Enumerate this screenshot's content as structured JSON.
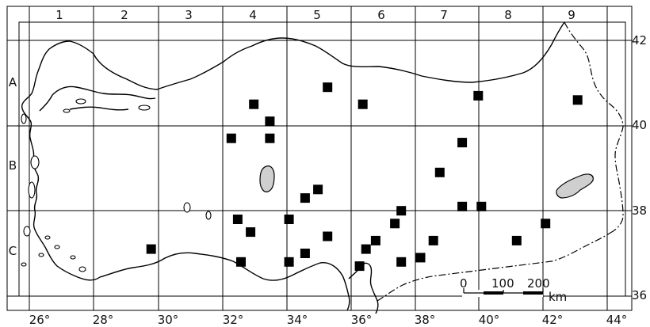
{
  "map": {
    "grid_columns": [
      "1",
      "2",
      "3",
      "4",
      "5",
      "6",
      "7",
      "8",
      "9"
    ],
    "grid_rows": [
      "A",
      "B",
      "C"
    ],
    "longitude_labels": [
      "26°",
      "28°",
      "30°",
      "32°",
      "34°",
      "36°",
      "38°",
      "40°",
      "42°",
      "44°"
    ],
    "latitude_labels": [
      "42",
      "40",
      "38",
      "36"
    ],
    "scale_bar": {
      "ticks": [
        "0",
        "100",
        "200"
      ],
      "unit": "km"
    },
    "legend_marker": "filled-square",
    "colors": {
      "marker": "#000000",
      "lake": "#cfcfcf",
      "line": "#000000"
    },
    "occurrence_points": [
      {
        "lon": 35.3,
        "lat": 40.9
      },
      {
        "lon": 36.4,
        "lat": 40.5
      },
      {
        "lon": 40.0,
        "lat": 40.7
      },
      {
        "lon": 43.1,
        "lat": 40.6
      },
      {
        "lon": 33.0,
        "lat": 40.5
      },
      {
        "lon": 33.5,
        "lat": 40.1
      },
      {
        "lon": 33.5,
        "lat": 39.7
      },
      {
        "lon": 32.3,
        "lat": 39.7
      },
      {
        "lon": 39.5,
        "lat": 39.6
      },
      {
        "lon": 38.8,
        "lat": 38.9
      },
      {
        "lon": 34.6,
        "lat": 38.3
      },
      {
        "lon": 35.0,
        "lat": 38.5
      },
      {
        "lon": 39.5,
        "lat": 38.1
      },
      {
        "lon": 40.1,
        "lat": 38.1
      },
      {
        "lon": 37.6,
        "lat": 38.0
      },
      {
        "lon": 32.5,
        "lat": 37.8
      },
      {
        "lon": 34.1,
        "lat": 37.8
      },
      {
        "lon": 37.4,
        "lat": 37.7
      },
      {
        "lon": 32.9,
        "lat": 37.5
      },
      {
        "lon": 35.3,
        "lat": 37.4
      },
      {
        "lon": 36.8,
        "lat": 37.3
      },
      {
        "lon": 38.6,
        "lat": 37.3
      },
      {
        "lon": 41.2,
        "lat": 37.3
      },
      {
        "lon": 42.1,
        "lat": 37.7
      },
      {
        "lon": 29.8,
        "lat": 37.1
      },
      {
        "lon": 36.5,
        "lat": 37.1
      },
      {
        "lon": 34.6,
        "lat": 37.0
      },
      {
        "lon": 38.2,
        "lat": 36.9
      },
      {
        "lon": 32.6,
        "lat": 36.8
      },
      {
        "lon": 34.1,
        "lat": 36.8
      },
      {
        "lon": 37.6,
        "lat": 36.8
      },
      {
        "lon": 36.3,
        "lat": 36.7
      }
    ]
  }
}
